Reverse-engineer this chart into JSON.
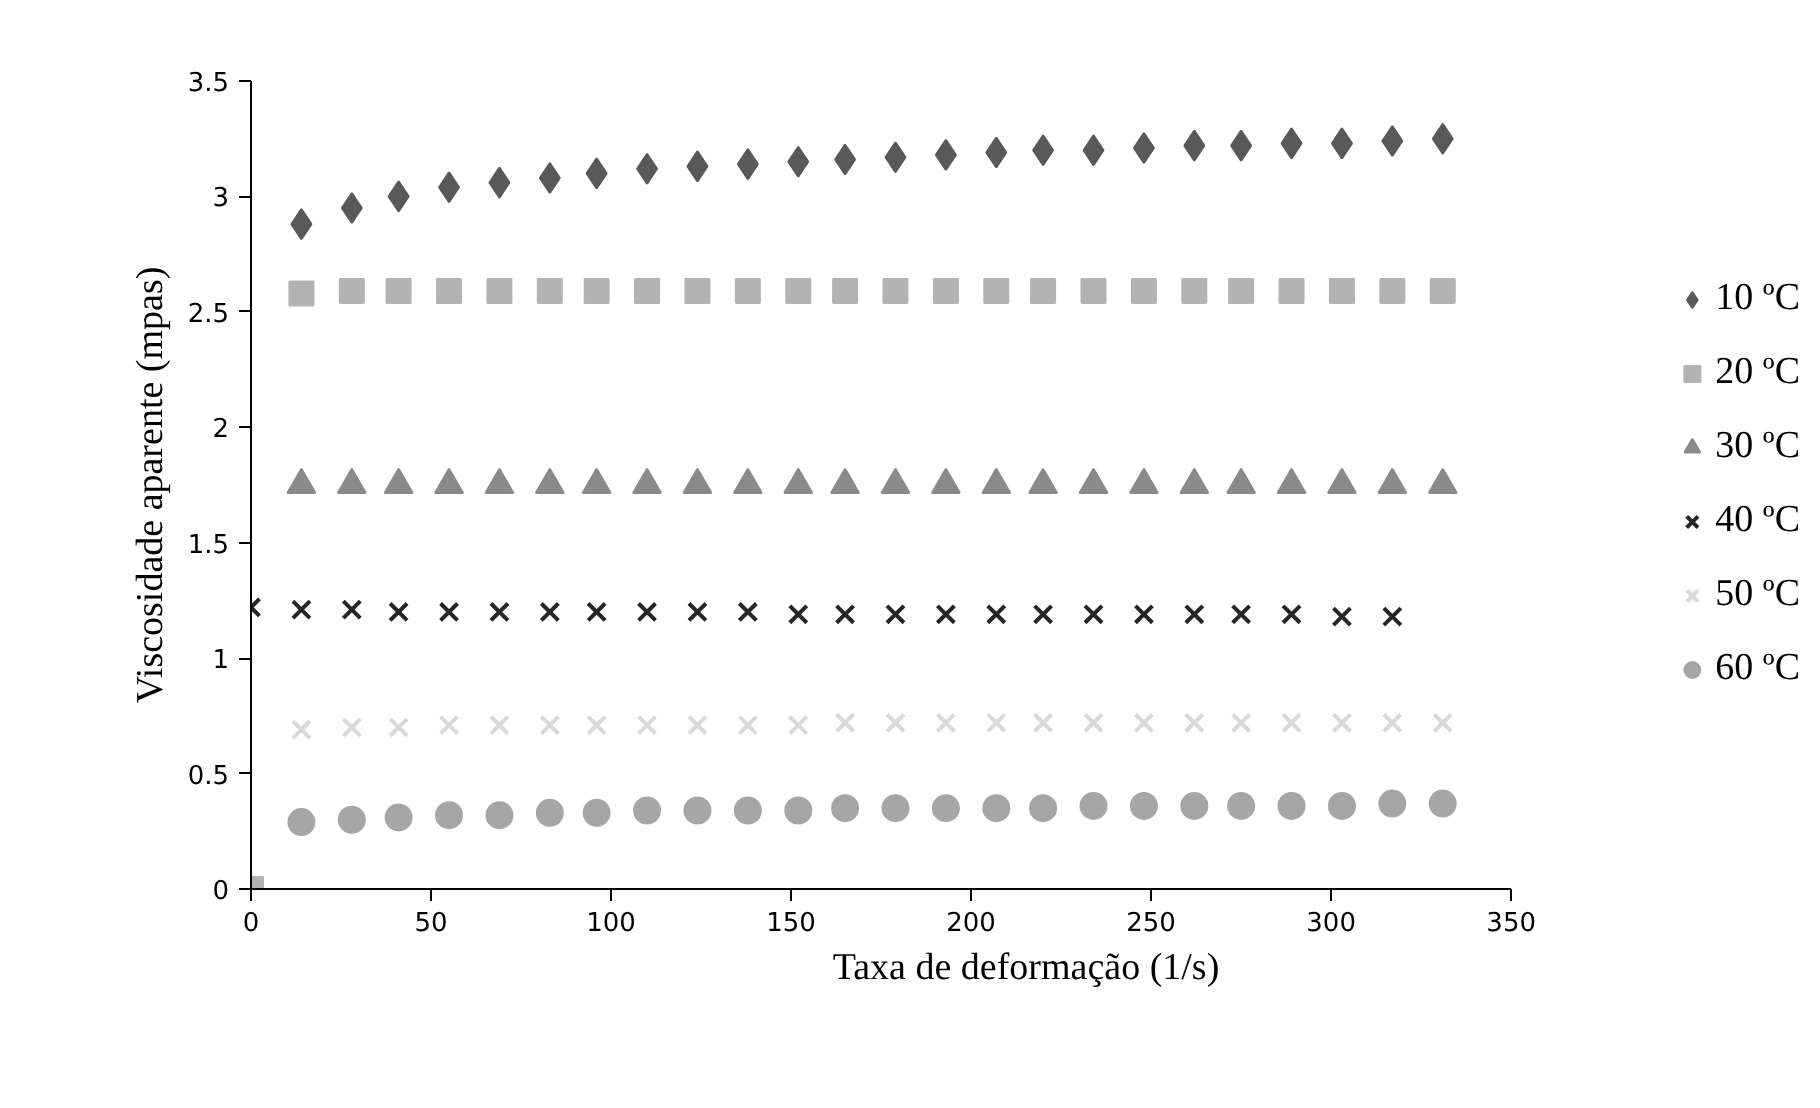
{
  "chart_data": {
    "type": "scatter",
    "xlabel": "Taxa de deformação (1/s)",
    "ylabel": "Viscosidade aparente (mpas)",
    "x": [
      14,
      28,
      41,
      55,
      69,
      83,
      96,
      110,
      124,
      138,
      152,
      165,
      179,
      193,
      207,
      220,
      234,
      248,
      262,
      275,
      289,
      303,
      317,
      331
    ],
    "series": [
      {
        "name": "10 ºC",
        "color": "#595959",
        "marker": "diamond",
        "values": [
          2.88,
          2.95,
          3.0,
          3.04,
          3.06,
          3.08,
          3.1,
          3.12,
          3.13,
          3.14,
          3.15,
          3.16,
          3.17,
          3.18,
          3.19,
          3.2,
          3.2,
          3.21,
          3.22,
          3.22,
          3.23,
          3.23,
          3.24,
          3.25
        ]
      },
      {
        "name": "20 ºC",
        "color": "#b3b3b3",
        "marker": "square",
        "x": [
          0,
          14,
          28,
          41,
          55,
          69,
          83,
          96,
          110,
          124,
          138,
          152,
          165,
          179,
          193,
          207,
          220,
          234,
          248,
          262,
          275,
          289,
          303,
          317,
          331
        ],
        "values": [
          0,
          2.58,
          2.59,
          2.59,
          2.59,
          2.59,
          2.59,
          2.59,
          2.59,
          2.59,
          2.59,
          2.59,
          2.59,
          2.59,
          2.59,
          2.59,
          2.59,
          2.59,
          2.59,
          2.59,
          2.59,
          2.59,
          2.59,
          2.59,
          2.59
        ]
      },
      {
        "name": "30 ºC",
        "color": "#8a8a8a",
        "marker": "triangle",
        "values": [
          1.75,
          1.75,
          1.75,
          1.75,
          1.75,
          1.75,
          1.75,
          1.75,
          1.75,
          1.75,
          1.75,
          1.75,
          1.75,
          1.75,
          1.75,
          1.75,
          1.75,
          1.75,
          1.75,
          1.75,
          1.75,
          1.75,
          1.75,
          1.75
        ]
      },
      {
        "name": "40 ºC",
        "color": "#262626",
        "marker": "cross",
        "x": [
          0,
          14,
          28,
          41,
          55,
          69,
          83,
          96,
          110,
          124,
          138,
          152,
          165,
          179,
          193,
          207,
          220,
          234,
          248,
          262,
          275,
          289,
          303,
          317
        ],
        "values": [
          1.22,
          1.21,
          1.21,
          1.2,
          1.2,
          1.2,
          1.2,
          1.2,
          1.2,
          1.2,
          1.2,
          1.19,
          1.19,
          1.19,
          1.19,
          1.19,
          1.19,
          1.19,
          1.19,
          1.19,
          1.19,
          1.19,
          1.18,
          1.18
        ]
      },
      {
        "name": "50 ºC",
        "color": "#d9d9d9",
        "marker": "cross",
        "values": [
          0.69,
          0.7,
          0.7,
          0.71,
          0.71,
          0.71,
          0.71,
          0.71,
          0.71,
          0.71,
          0.71,
          0.72,
          0.72,
          0.72,
          0.72,
          0.72,
          0.72,
          0.72,
          0.72,
          0.72,
          0.72,
          0.72,
          0.72,
          0.72
        ]
      },
      {
        "name": "60 ºC",
        "color": "#a6a6a6",
        "marker": "circle",
        "values": [
          0.29,
          0.3,
          0.31,
          0.32,
          0.32,
          0.33,
          0.33,
          0.34,
          0.34,
          0.34,
          0.34,
          0.35,
          0.35,
          0.35,
          0.35,
          0.35,
          0.36,
          0.36,
          0.36,
          0.36,
          0.36,
          0.36,
          0.37,
          0.37
        ]
      }
    ],
    "xlim": [
      0,
      350
    ],
    "xticks": [
      0,
      50,
      100,
      150,
      200,
      250,
      300,
      350
    ],
    "ylim": [
      0,
      3.5
    ],
    "yticks": [
      0,
      0.5,
      1,
      1.5,
      2,
      2.5,
      3,
      3.5
    ],
    "grid": false,
    "legend": "right"
  }
}
